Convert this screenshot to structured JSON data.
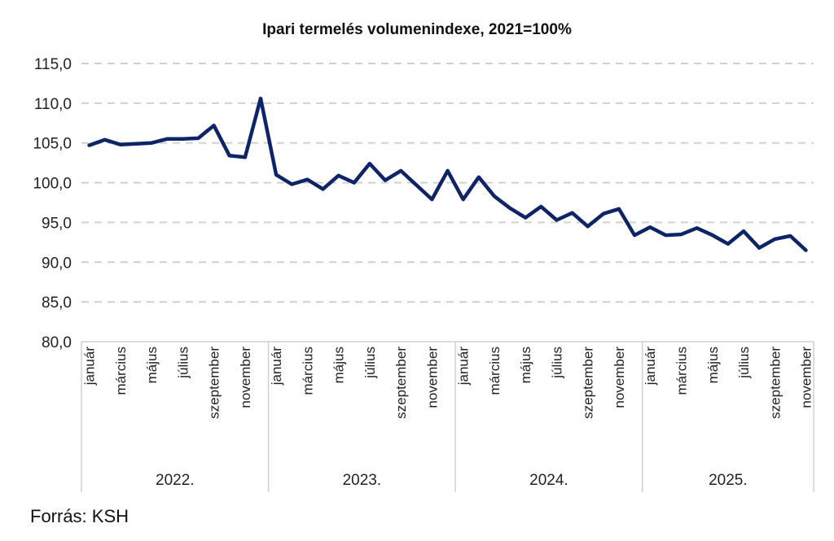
{
  "chart_data": {
    "type": "line",
    "title": "Ipari termelés  volumenindexe, 2021=100%",
    "xlabel": "",
    "ylabel": "",
    "ylim": [
      80,
      115
    ],
    "yticks": [
      80,
      85,
      90,
      95,
      100,
      105,
      110,
      115
    ],
    "ytick_labels": [
      "80,0",
      "85,0",
      "90,0",
      "95,0",
      "100,0",
      "105,0",
      "110,0",
      "115,0"
    ],
    "grid": "horizontal-dashed",
    "legend": "none",
    "line_color": "#0d2468",
    "year_groups": [
      {
        "label": "2022.",
        "months": 12
      },
      {
        "label": "2023.",
        "months": 12
      },
      {
        "label": "2024.",
        "months": 12
      },
      {
        "label": "2025.",
        "months": 11
      }
    ],
    "month_tick_labels": [
      "január",
      "",
      "március",
      "",
      "május",
      "",
      "július",
      "",
      "szeptember",
      "",
      "november",
      ""
    ],
    "series": [
      {
        "name": "Ipari termelés volumenindexe",
        "values": [
          104.7,
          105.4,
          104.8,
          104.9,
          105.0,
          105.5,
          105.5,
          105.6,
          107.2,
          103.4,
          103.2,
          110.6,
          101.0,
          99.8,
          100.4,
          99.2,
          100.9,
          100.0,
          102.4,
          100.3,
          101.5,
          99.7,
          97.9,
          101.5,
          97.9,
          100.7,
          98.3,
          96.8,
          95.6,
          97.0,
          95.3,
          96.2,
          94.5,
          96.1,
          96.7,
          93.4,
          94.4,
          93.4,
          93.5,
          94.3,
          93.4,
          92.3,
          93.9,
          91.8,
          92.9,
          93.3,
          91.5
        ]
      }
    ]
  },
  "source": "Forrás: KSH"
}
